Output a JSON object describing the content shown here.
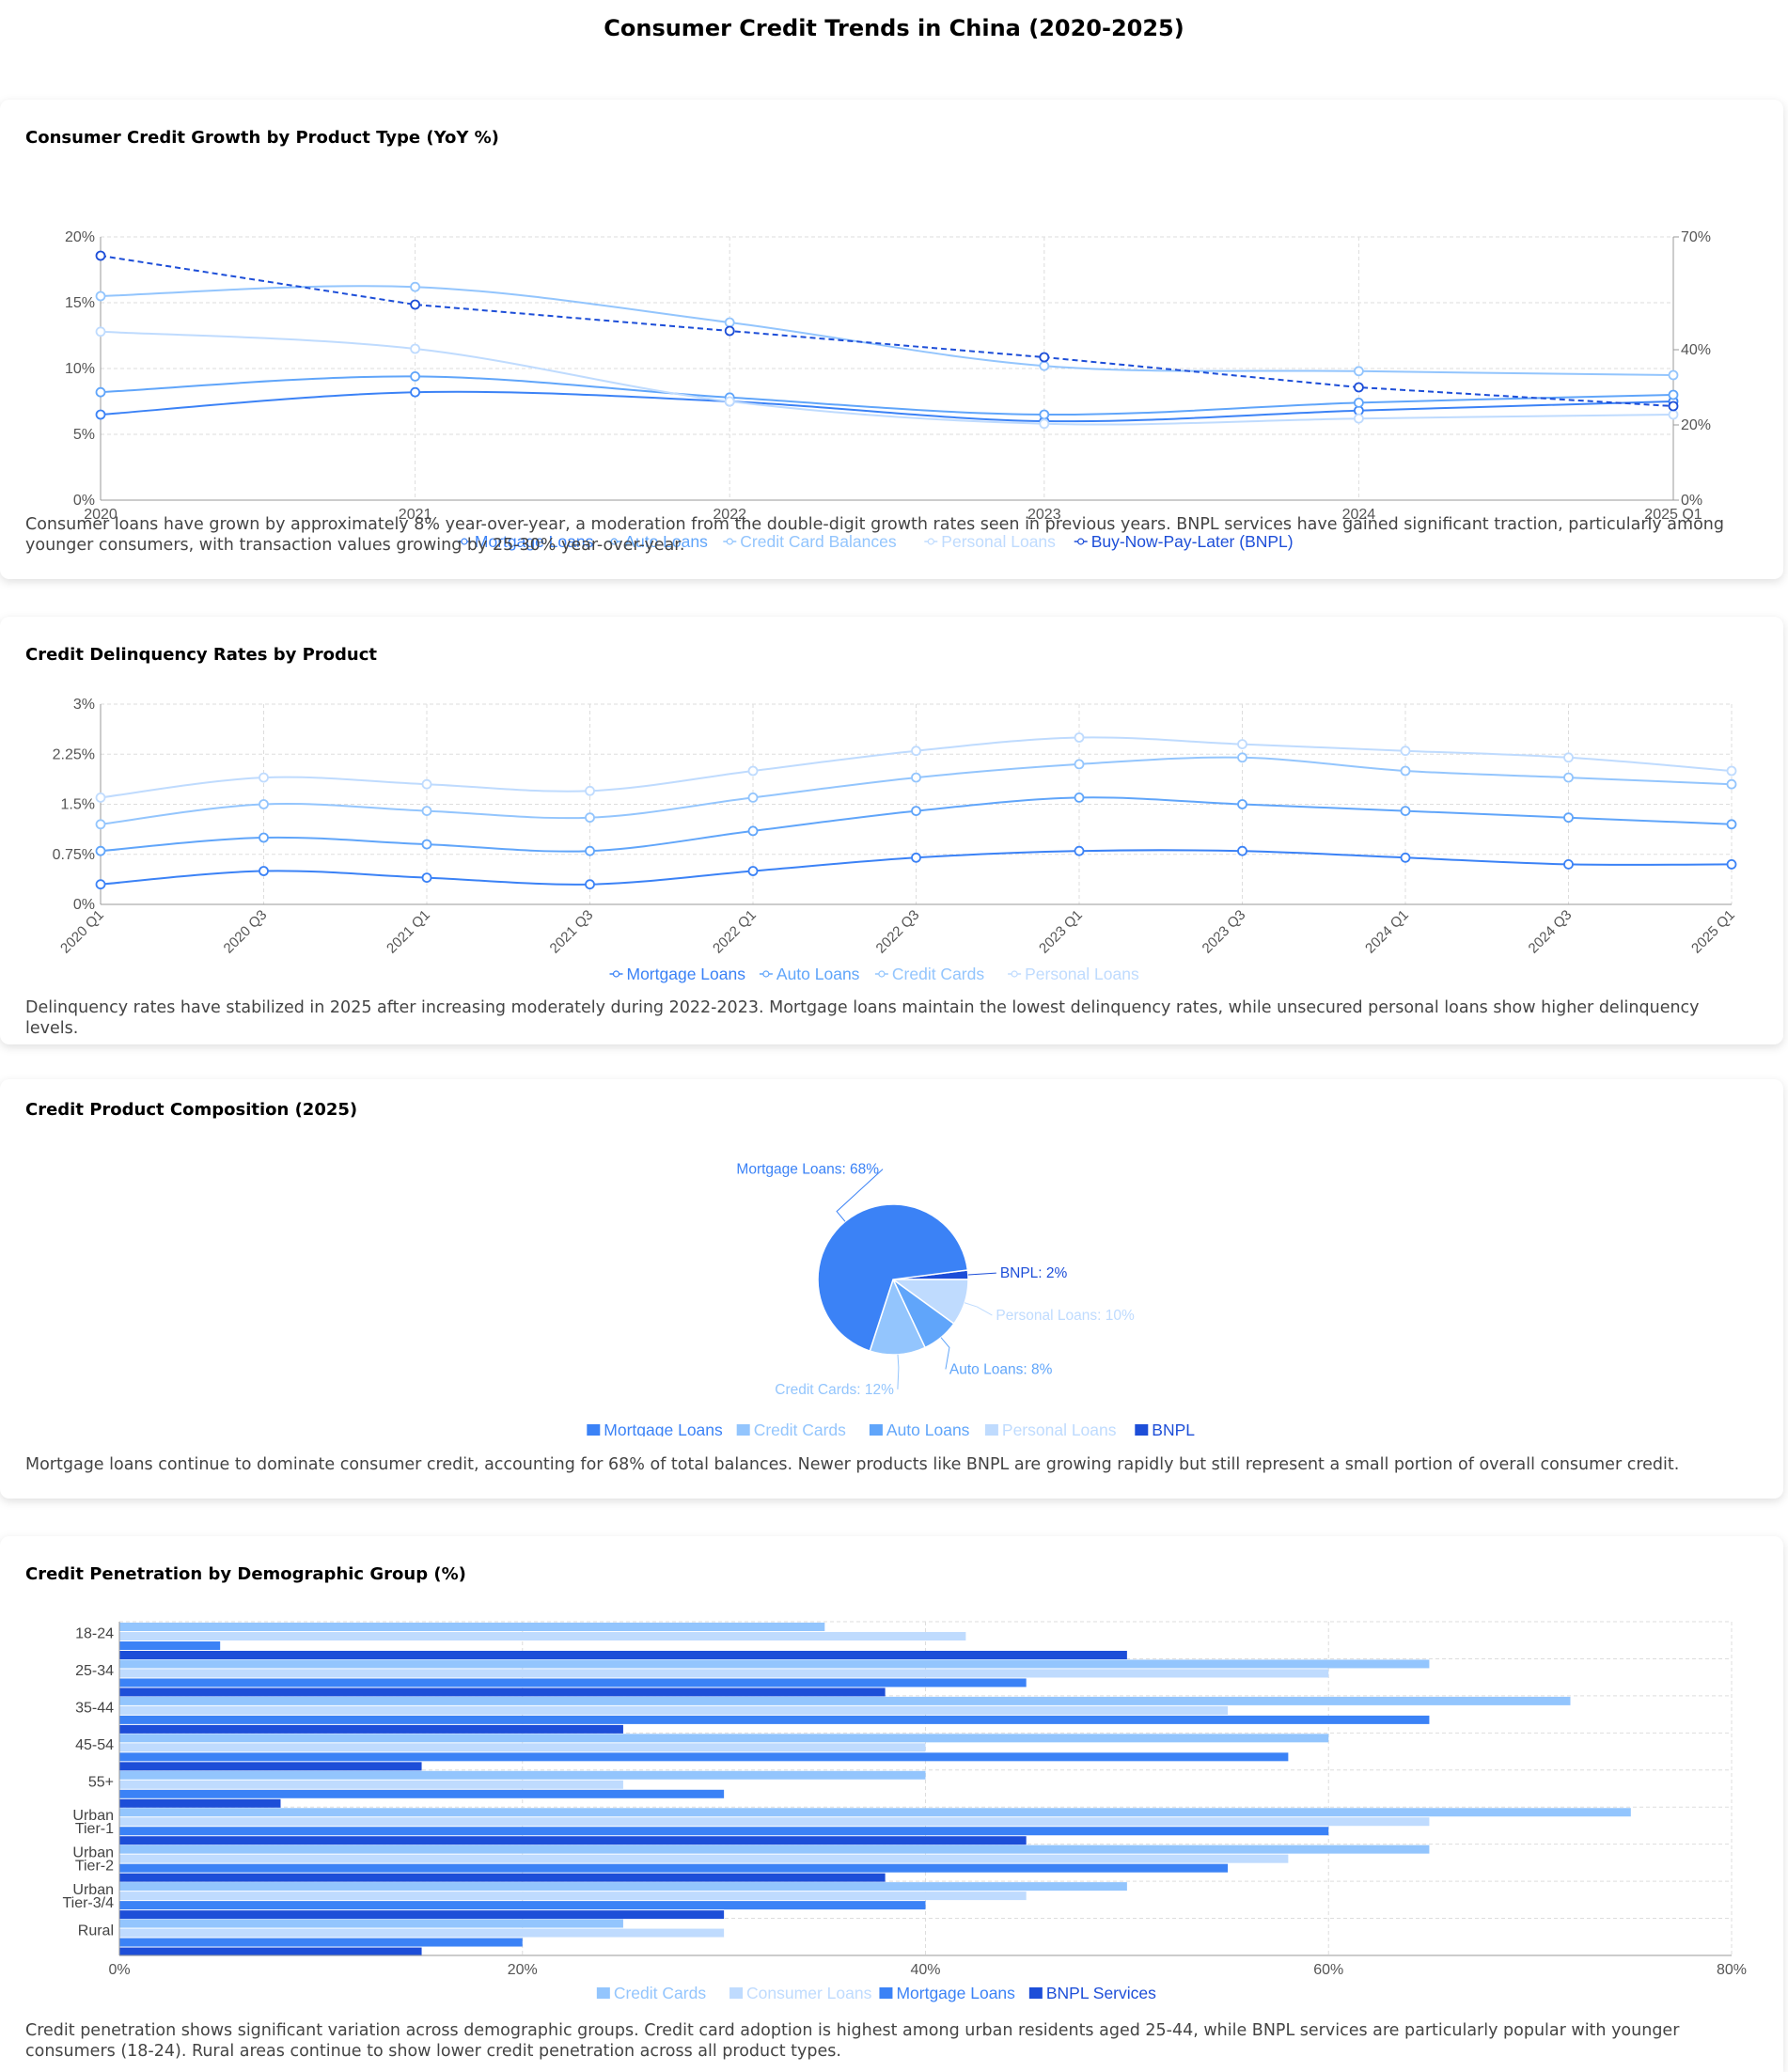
{
  "page_title": "Consumer Credit Trends in China (2020-2025)",
  "colors": {
    "mortgage": "#3b82f6",
    "auto": "#60a5fa",
    "credit": "#93c5fd",
    "personal": "#bfdbfe",
    "bnpl": "#1d4ed8",
    "grid": "#dddddd",
    "axis": "#999999"
  },
  "chart_data": [
    {
      "id": "growth",
      "type": "line",
      "title": "Consumer Credit Growth by Product Type (YoY %)",
      "x": [
        "2020",
        "2021",
        "2022",
        "2023",
        "2024",
        "2025 Q1"
      ],
      "y_ticks": [
        "0%",
        "5%",
        "10%",
        "15%",
        "20%"
      ],
      "ylim": [
        0,
        20
      ],
      "y2_ticks": [
        "0%",
        "20%",
        "40%",
        "70%"
      ],
      "y2_tick_values": [
        0,
        20,
        40,
        70
      ],
      "y2lim": [
        0,
        70
      ],
      "grid": true,
      "legend_position": "bottom",
      "series": [
        {
          "name": "Mortgage Loans",
          "axis": "left",
          "values": [
            6.5,
            8.2,
            7.5,
            6.0,
            6.8,
            7.5
          ],
          "dashed": false,
          "color": "#3b82f6"
        },
        {
          "name": "Auto Loans",
          "axis": "left",
          "values": [
            8.2,
            9.4,
            7.8,
            6.5,
            7.4,
            8.0
          ],
          "dashed": false,
          "color": "#60a5fa"
        },
        {
          "name": "Credit Card Balances",
          "axis": "left",
          "values": [
            15.5,
            16.2,
            13.5,
            10.2,
            9.8,
            9.5
          ],
          "dashed": false,
          "color": "#93c5fd"
        },
        {
          "name": "Personal Loans",
          "axis": "left",
          "values": [
            12.8,
            11.5,
            7.5,
            5.8,
            6.2,
            6.5
          ],
          "dashed": false,
          "color": "#bfdbfe"
        },
        {
          "name": "Buy-Now-Pay-Later (BNPL)",
          "axis": "right",
          "values": [
            65,
            52,
            45,
            38,
            30,
            25
          ],
          "dashed": true,
          "color": "#1d4ed8"
        }
      ],
      "description": "Consumer loans have grown by approximately 8% year-over-year, a moderation from the double-digit growth rates seen in previous years. BNPL services have gained significant traction, particularly among younger consumers, with transaction values growing by 25-30% year-over-year."
    },
    {
      "id": "delinquency",
      "type": "line",
      "title": "Credit Delinquency Rates by Product",
      "x": [
        "2020 Q1",
        "2020 Q3",
        "2021 Q1",
        "2021 Q3",
        "2022 Q1",
        "2022 Q3",
        "2023 Q1",
        "2023 Q3",
        "2024 Q1",
        "2024 Q3",
        "2025 Q1"
      ],
      "y_ticks": [
        "0%",
        "0.75%",
        "1.5%",
        "2.25%",
        "3%"
      ],
      "ylim": [
        0,
        3
      ],
      "grid": true,
      "legend_position": "bottom",
      "series": [
        {
          "name": "Mortgage Loans",
          "values": [
            0.3,
            0.5,
            0.4,
            0.3,
            0.5,
            0.7,
            0.8,
            0.8,
            0.7,
            0.6,
            0.6
          ],
          "color": "#3b82f6"
        },
        {
          "name": "Auto Loans",
          "values": [
            0.8,
            1.0,
            0.9,
            0.8,
            1.1,
            1.4,
            1.6,
            1.5,
            1.4,
            1.3,
            1.2
          ],
          "color": "#60a5fa"
        },
        {
          "name": "Credit Cards",
          "values": [
            1.2,
            1.5,
            1.4,
            1.3,
            1.6,
            1.9,
            2.1,
            2.2,
            2.0,
            1.9,
            1.8
          ],
          "color": "#93c5fd"
        },
        {
          "name": "Personal Loans",
          "values": [
            1.6,
            1.9,
            1.8,
            1.7,
            2.0,
            2.3,
            2.5,
            2.4,
            2.3,
            2.2,
            2.0
          ],
          "color": "#bfdbfe"
        }
      ],
      "description": "Delinquency rates have stabilized in 2025 after increasing moderately during 2022-2023. Mortgage loans maintain the lowest delinquency rates, while unsecured personal loans show higher delinquency levels."
    },
    {
      "id": "composition",
      "type": "pie",
      "title": "Credit Product Composition (2025)",
      "legend_position": "bottom",
      "slices": [
        {
          "name": "Mortgage Loans",
          "value": 68,
          "label": "Mortgage Loans: 68%",
          "color": "#3b82f6"
        },
        {
          "name": "Credit Cards",
          "value": 12,
          "label": "Credit Cards: 12%",
          "color": "#93c5fd"
        },
        {
          "name": "Auto Loans",
          "value": 8,
          "label": "Auto Loans: 8%",
          "color": "#60a5fa"
        },
        {
          "name": "Personal Loans",
          "value": 10,
          "label": "Personal Loans: 10%",
          "color": "#bfdbfe"
        },
        {
          "name": "BNPL",
          "value": 2,
          "label": "BNPL: 2%",
          "color": "#1d4ed8"
        }
      ],
      "description": "Mortgage loans continue to dominate consumer credit, accounting for 68% of total balances. Newer products like BNPL are growing rapidly but still represent a small portion of overall consumer credit."
    },
    {
      "id": "penetration",
      "type": "bar",
      "orientation": "horizontal",
      "title": "Credit Penetration by Demographic Group (%)",
      "categories": [
        [
          "18-24"
        ],
        [
          "25-34"
        ],
        [
          "35-44"
        ],
        [
          "45-54"
        ],
        [
          "55+"
        ],
        [
          "Urban",
          "Tier-1"
        ],
        [
          "Urban",
          "Tier-2"
        ],
        [
          "Urban",
          "Tier-3/4"
        ],
        [
          "Rural"
        ]
      ],
      "x_ticks": [
        "0%",
        "20%",
        "40%",
        "60%",
        "80%"
      ],
      "xlim": [
        0,
        80
      ],
      "grid": true,
      "legend_position": "bottom",
      "series": [
        {
          "name": "Credit Cards",
          "values": [
            35,
            65,
            72,
            60,
            40,
            75,
            65,
            50,
            25
          ],
          "color": "#93c5fd"
        },
        {
          "name": "Consumer Loans",
          "values": [
            42,
            60,
            55,
            40,
            25,
            65,
            58,
            45,
            30
          ],
          "color": "#bfdbfe"
        },
        {
          "name": "Mortgage Loans",
          "values": [
            5,
            45,
            65,
            58,
            30,
            60,
            55,
            40,
            20
          ],
          "color": "#3b82f6"
        },
        {
          "name": "BNPL Services",
          "values": [
            50,
            38,
            25,
            15,
            8,
            45,
            38,
            30,
            15
          ],
          "color": "#1d4ed8"
        }
      ],
      "description": "Credit penetration shows significant variation across demographic groups. Credit card adoption is highest among urban residents aged 25-44, while BNPL services are particularly popular with younger consumers (18-24). Rural areas continue to show lower credit penetration across all product types."
    }
  ]
}
